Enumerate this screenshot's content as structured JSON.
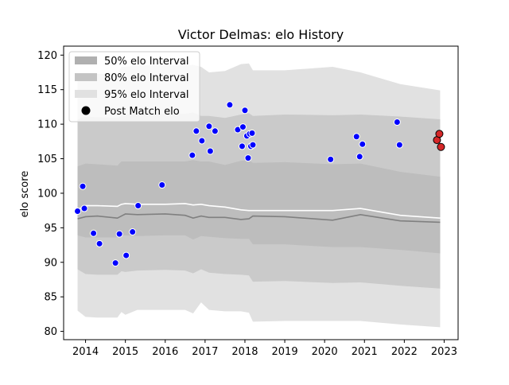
{
  "chart_data": {
    "type": "scatter",
    "title": "Victor Delmas: elo History",
    "xlabel": "",
    "ylabel": "elo score",
    "xlim": [
      2013.45,
      2023.35
    ],
    "ylim": [
      78.8,
      121.3
    ],
    "x_ticks": [
      2014,
      2015,
      2016,
      2017,
      2018,
      2019,
      2020,
      2021,
      2022,
      2023
    ],
    "y_ticks": [
      80,
      85,
      90,
      95,
      100,
      105,
      110,
      115,
      120
    ],
    "grid": false,
    "legend_position": "top-left",
    "legend": [
      {
        "label": "50% elo Interval",
        "kind": "patch",
        "color": "#b0b0b0"
      },
      {
        "label": "80% elo Interval",
        "kind": "patch",
        "color": "#c4c4c4"
      },
      {
        "label": "95% elo Interval",
        "kind": "patch",
        "color": "#e1e1e1"
      },
      {
        "label": "Post Match elo",
        "kind": "marker",
        "color": "#000000"
      }
    ],
    "colors": {
      "band_95": "#e1e1e1",
      "band_80": "#cacaca",
      "band_50": "#bdbdbd",
      "mean_line": "#ffffff",
      "median_line": "#808080",
      "past_points": "#0000ff",
      "recent_points": "#d62728"
    },
    "band_x": [
      2013.8,
      2014.0,
      2014.3,
      2014.8,
      2014.9,
      2015.0,
      2015.3,
      2016.0,
      2016.5,
      2016.7,
      2016.9,
      2017.1,
      2017.5,
      2017.9,
      2018.1,
      2018.2,
      2019.0,
      2020.2,
      2020.9,
      2021.9,
      2022.9
    ],
    "band_95_upper": [
      116.5,
      117.2,
      117.3,
      117.2,
      118.3,
      118.3,
      118.5,
      118.5,
      118.5,
      118.6,
      118.3,
      117.5,
      117.7,
      118.7,
      118.8,
      117.8,
      117.8,
      118.3,
      117.5,
      115.8,
      114.9
    ],
    "band_95_lower": [
      83.0,
      82.1,
      82.0,
      82.0,
      82.8,
      82.4,
      83.1,
      83.1,
      83.1,
      82.6,
      84.2,
      83.1,
      82.9,
      82.9,
      82.7,
      81.4,
      81.5,
      81.5,
      81.5,
      81.0,
      80.6
    ],
    "band_80_upper": [
      110.7,
      111.1,
      111.0,
      110.9,
      111.2,
      111.4,
      111.6,
      111.5,
      111.5,
      111.7,
      111.2,
      111.2,
      110.9,
      111.4,
      111.6,
      111.2,
      111.4,
      111.3,
      111.4,
      111.1,
      110.7
    ],
    "band_80_lower": [
      89.0,
      88.3,
      88.2,
      88.2,
      88.7,
      88.6,
      88.8,
      88.9,
      88.8,
      88.4,
      89.0,
      88.5,
      88.3,
      88.2,
      88.1,
      87.2,
      87.3,
      87.0,
      87.1,
      86.6,
      86.2
    ],
    "band_50_upper": [
      103.9,
      104.3,
      104.2,
      104.0,
      104.6,
      104.6,
      104.6,
      104.6,
      104.6,
      104.8,
      104.6,
      104.6,
      104.1,
      104.7,
      104.8,
      104.4,
      104.5,
      104.2,
      104.3,
      103.1,
      102.4
    ],
    "band_50_lower": [
      93.9,
      93.6,
      93.6,
      93.6,
      93.9,
      93.9,
      93.8,
      93.9,
      93.9,
      93.3,
      93.8,
      93.7,
      93.5,
      93.4,
      93.4,
      92.6,
      92.6,
      92.2,
      92.2,
      91.8,
      91.3
    ],
    "mean_line": [
      97.6,
      98.2,
      98.2,
      98.1,
      98.4,
      98.5,
      98.4,
      98.4,
      98.5,
      98.3,
      98.4,
      98.2,
      98.0,
      97.6,
      97.5,
      97.5,
      97.5,
      97.5,
      97.8,
      96.8,
      96.4
    ],
    "median_line": [
      96.3,
      96.6,
      96.7,
      96.4,
      96.7,
      97.0,
      96.9,
      97.0,
      96.8,
      96.4,
      96.7,
      96.5,
      96.5,
      96.2,
      96.3,
      96.7,
      96.6,
      96.1,
      96.9,
      96.0,
      95.8
    ],
    "points": [
      {
        "x": 2013.8,
        "y": 97.4
      },
      {
        "x": 2013.93,
        "y": 101.0
      },
      {
        "x": 2013.97,
        "y": 97.8
      },
      {
        "x": 2014.2,
        "y": 94.2
      },
      {
        "x": 2014.35,
        "y": 92.7
      },
      {
        "x": 2014.75,
        "y": 89.9
      },
      {
        "x": 2014.85,
        "y": 94.1
      },
      {
        "x": 2015.02,
        "y": 91.0
      },
      {
        "x": 2015.18,
        "y": 94.4
      },
      {
        "x": 2015.32,
        "y": 98.2
      },
      {
        "x": 2015.92,
        "y": 101.2
      },
      {
        "x": 2016.68,
        "y": 105.5
      },
      {
        "x": 2016.78,
        "y": 109.0
      },
      {
        "x": 2016.92,
        "y": 107.6
      },
      {
        "x": 2017.1,
        "y": 109.7
      },
      {
        "x": 2017.13,
        "y": 106.1
      },
      {
        "x": 2017.25,
        "y": 109.0
      },
      {
        "x": 2017.62,
        "y": 112.8
      },
      {
        "x": 2017.82,
        "y": 109.2
      },
      {
        "x": 2017.93,
        "y": 106.8
      },
      {
        "x": 2017.95,
        "y": 109.6
      },
      {
        "x": 2018.0,
        "y": 112.0
      },
      {
        "x": 2018.05,
        "y": 108.3
      },
      {
        "x": 2018.08,
        "y": 105.1
      },
      {
        "x": 2018.12,
        "y": 108.6
      },
      {
        "x": 2018.15,
        "y": 106.8
      },
      {
        "x": 2018.18,
        "y": 108.7
      },
      {
        "x": 2018.2,
        "y": 107.0
      },
      {
        "x": 2020.15,
        "y": 104.9
      },
      {
        "x": 2020.8,
        "y": 108.2
      },
      {
        "x": 2020.88,
        "y": 105.3
      },
      {
        "x": 2020.95,
        "y": 107.1
      },
      {
        "x": 2021.82,
        "y": 110.3
      },
      {
        "x": 2021.88,
        "y": 107.0
      }
    ],
    "recent_points": [
      {
        "x": 2022.82,
        "y": 107.7
      },
      {
        "x": 2022.88,
        "y": 108.6
      },
      {
        "x": 2022.92,
        "y": 106.7
      }
    ]
  }
}
